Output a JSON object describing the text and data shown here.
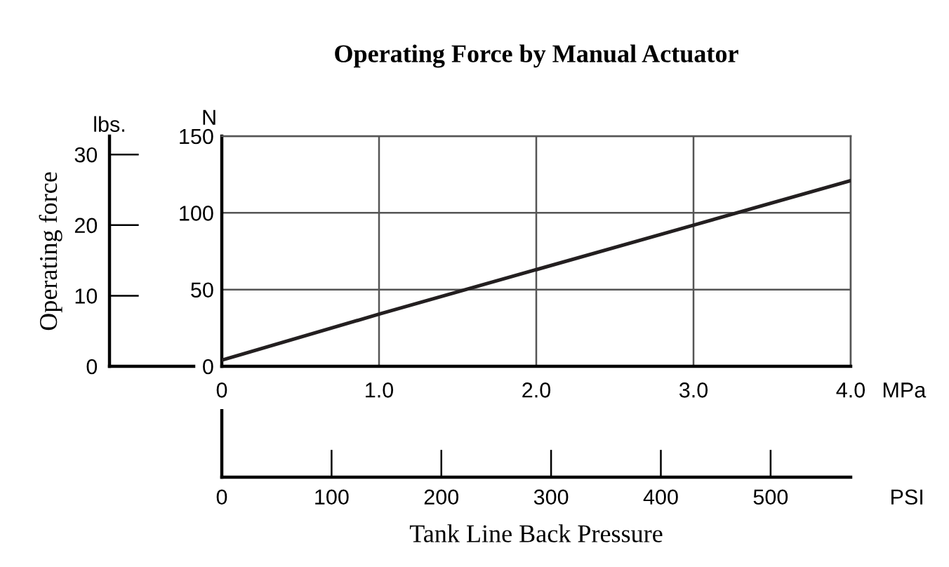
{
  "chart_data": {
    "type": "line",
    "title": "Operating Force by Manual Actuator",
    "xlabel": "Tank Line Back Pressure",
    "ylabel": "Operating force",
    "y2label": "N",
    "x2label": "PSI",
    "annotations": [
      "lbs.",
      "MPa"
    ],
    "x": [
      0,
      1,
      2,
      3,
      4
    ],
    "series": [
      {
        "color": "#231f20",
        "axis": "y2",
        "values": [
          4,
          34,
          63,
          92,
          121
        ]
      }
    ],
    "xlim": [
      0,
      4
    ],
    "xticks": [
      0,
      {
        "value": 1,
        "label": "1.0"
      },
      {
        "value": 2,
        "label": "2.0"
      },
      {
        "value": 3,
        "label": "3.0"
      },
      {
        "value": 4,
        "label": "4.0"
      }
    ],
    "ylim": [
      0,
      32.6
    ],
    "yticks": [
      0,
      10,
      20,
      30
    ],
    "y2lim": [
      0,
      150
    ],
    "y2ticks": [
      0,
      50,
      100,
      150
    ],
    "x2lim": [
      0,
      573
    ],
    "x2ticks": [
      0,
      100,
      200,
      300,
      400,
      500
    ],
    "grid": true,
    "marker": "none",
    "line_style": "solid"
  }
}
